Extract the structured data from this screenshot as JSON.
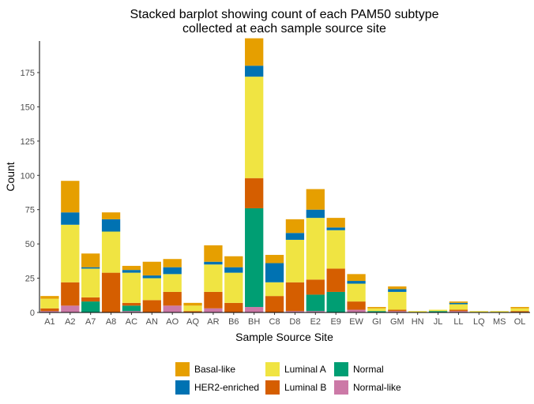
{
  "chart_data": {
    "type": "bar",
    "stacked": true,
    "title_lines": [
      "Stacked barplot showing count of each PAM50 subtype",
      "collected at each sample source site"
    ],
    "xlabel": "Sample Source Site",
    "ylabel": "Count",
    "ylim": [
      0,
      198
    ],
    "yticks": [
      0,
      25,
      50,
      75,
      100,
      125,
      150,
      175
    ],
    "grid": false,
    "legend_position": "bottom",
    "categories": [
      "A1",
      "A2",
      "A7",
      "A8",
      "AC",
      "AN",
      "AO",
      "AQ",
      "AR",
      "B6",
      "BH",
      "C8",
      "D8",
      "E2",
      "E9",
      "EW",
      "GI",
      "GM",
      "HN",
      "JL",
      "LL",
      "LQ",
      "MS",
      "OL"
    ],
    "stack_order_bottom_to_top": [
      "Normal-like",
      "Normal",
      "Luminal B",
      "Luminal A",
      "HER2-enriched",
      "Basal-like"
    ],
    "series": [
      {
        "name": "Basal-like",
        "color": "#E69F00",
        "values": [
          2,
          23,
          10,
          5,
          3,
          10,
          6,
          2,
          12,
          8,
          20,
          6,
          10,
          15,
          7,
          5,
          1,
          2,
          0,
          0,
          1,
          0,
          0,
          1
        ]
      },
      {
        "name": "HER2-enriched",
        "color": "#0072B2",
        "values": [
          0,
          9,
          1,
          9,
          2,
          2,
          5,
          0,
          2,
          4,
          8,
          14,
          5,
          6,
          2,
          2,
          0,
          2,
          0,
          0,
          1,
          0,
          0,
          0
        ]
      },
      {
        "name": "Luminal A",
        "color": "#F0E442",
        "values": [
          7,
          42,
          21,
          30,
          22,
          16,
          13,
          4,
          20,
          22,
          74,
          10,
          31,
          45,
          28,
          13,
          2,
          13,
          1,
          1,
          4,
          1,
          1,
          2
        ]
      },
      {
        "name": "Luminal B",
        "color": "#D55E00",
        "values": [
          2,
          17,
          3,
          29,
          2,
          9,
          10,
          1,
          12,
          7,
          22,
          12,
          21,
          11,
          17,
          6,
          0,
          1,
          0,
          0,
          1,
          0,
          0,
          1
        ]
      },
      {
        "name": "Normal",
        "color": "#009E73",
        "values": [
          0,
          0,
          8,
          0,
          4,
          0,
          0,
          0,
          0,
          0,
          72,
          0,
          0,
          12,
          15,
          0,
          1,
          0,
          0,
          1,
          0,
          0,
          0,
          0
        ]
      },
      {
        "name": "Normal-like",
        "color": "#CC79A7",
        "values": [
          1,
          5,
          0,
          0,
          1,
          0,
          5,
          0,
          3,
          0,
          4,
          0,
          1,
          1,
          0,
          2,
          0,
          1,
          0,
          0,
          1,
          0,
          0,
          0
        ]
      }
    ],
    "legend_rows": [
      [
        "Basal-like",
        "Luminal A",
        "Normal"
      ],
      [
        "HER2-enriched",
        "Luminal B",
        "Normal-like"
      ]
    ]
  }
}
